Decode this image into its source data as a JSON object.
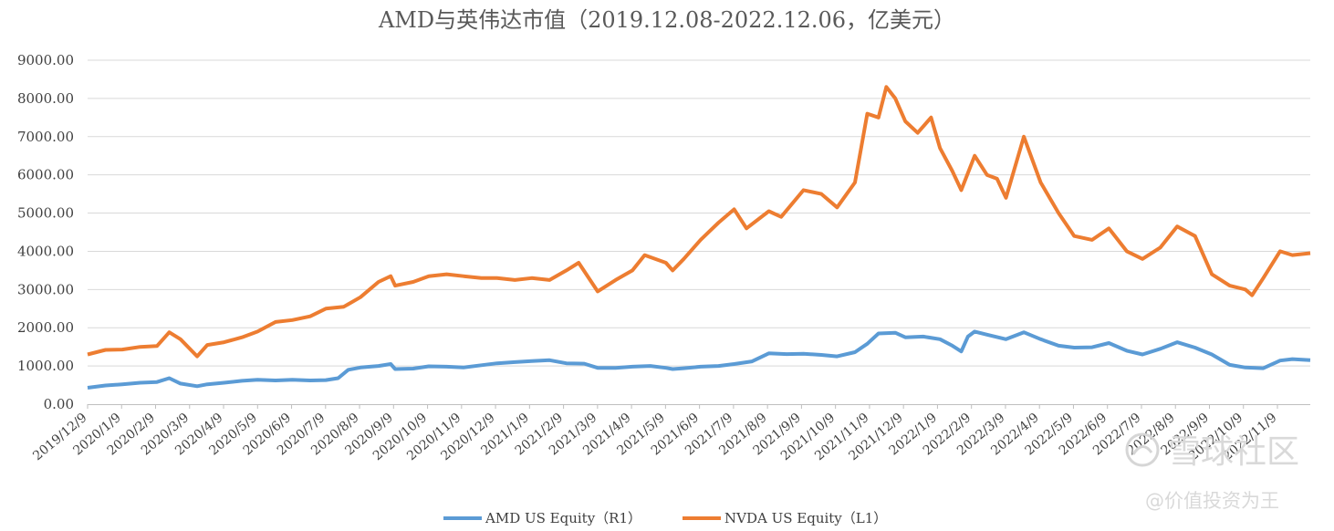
{
  "chart_data": {
    "type": "line",
    "title": "AMD与英伟达市值（2019.12.08-2022.12.06，亿美元）",
    "xlabel": "",
    "ylabel": "",
    "ylim": [
      0,
      9000
    ],
    "grid": true,
    "legend": "bottom",
    "y_ticks": [
      "0.00",
      "1000.00",
      "2000.00",
      "3000.00",
      "4000.00",
      "5000.00",
      "6000.00",
      "7000.00",
      "8000.00",
      "9000.00"
    ],
    "x_ticks": [
      "2019/12/9",
      "2020/1/9",
      "2020/2/9",
      "2020/3/9",
      "2020/4/9",
      "2020/5/9",
      "2020/6/9",
      "2020/7/9",
      "2020/8/9",
      "2020/9/9",
      "2020/10/9",
      "2020/11/9",
      "2020/12/9",
      "2021/1/9",
      "2021/2/9",
      "2021/3/9",
      "2021/4/9",
      "2021/5/9",
      "2021/6/9",
      "2021/7/9",
      "2021/8/9",
      "2021/9/9",
      "2021/10/9",
      "2021/11/9",
      "2021/12/9",
      "2022/1/9",
      "2022/2/9",
      "2022/3/9",
      "2022/4/9",
      "2022/5/9",
      "2022/6/9",
      "2022/7/9",
      "2022/8/9",
      "2022/9/9",
      "2022/10/9",
      "2022/11/9"
    ],
    "series": [
      {
        "name": "AMD US Equity（R1）",
        "color": "#5b9bd5",
        "points": [
          [
            "2019/12/9",
            430
          ],
          [
            "2019/12/25",
            490
          ],
          [
            "2020/1/9",
            520
          ],
          [
            "2020/1/25",
            560
          ],
          [
            "2020/2/9",
            580
          ],
          [
            "2020/2/20",
            680
          ],
          [
            "2020/3/1",
            540
          ],
          [
            "2020/3/16",
            470
          ],
          [
            "2020/3/25",
            520
          ],
          [
            "2020/4/9",
            560
          ],
          [
            "2020/4/25",
            610
          ],
          [
            "2020/5/9",
            640
          ],
          [
            "2020/5/25",
            620
          ],
          [
            "2020/6/9",
            640
          ],
          [
            "2020/6/25",
            620
          ],
          [
            "2020/7/9",
            630
          ],
          [
            "2020/7/20",
            680
          ],
          [
            "2020/7/29",
            900
          ],
          [
            "2020/8/9",
            960
          ],
          [
            "2020/8/25",
            1000
          ],
          [
            "2020/9/5",
            1050
          ],
          [
            "2020/9/9",
            920
          ],
          [
            "2020/9/25",
            930
          ],
          [
            "2020/10/9",
            990
          ],
          [
            "2020/10/25",
            980
          ],
          [
            "2020/11/9",
            960
          ],
          [
            "2020/11/25",
            1020
          ],
          [
            "2020/12/9",
            1070
          ],
          [
            "2020/12/25",
            1100
          ],
          [
            "2021/1/9",
            1130
          ],
          [
            "2021/1/25",
            1150
          ],
          [
            "2021/2/9",
            1070
          ],
          [
            "2021/2/25",
            1060
          ],
          [
            "2021/3/9",
            950
          ],
          [
            "2021/3/25",
            950
          ],
          [
            "2021/4/9",
            980
          ],
          [
            "2021/4/25",
            1000
          ],
          [
            "2021/5/9",
            950
          ],
          [
            "2021/5/15",
            920
          ],
          [
            "2021/5/25",
            940
          ],
          [
            "2021/6/9",
            980
          ],
          [
            "2021/6/25",
            1000
          ],
          [
            "2021/7/9",
            1050
          ],
          [
            "2021/7/25",
            1120
          ],
          [
            "2021/8/9",
            1330
          ],
          [
            "2021/8/25",
            1310
          ],
          [
            "2021/9/9",
            1320
          ],
          [
            "2021/9/25",
            1290
          ],
          [
            "2021/10/9",
            1250
          ],
          [
            "2021/10/25",
            1360
          ],
          [
            "2021/11/5",
            1580
          ],
          [
            "2021/11/15",
            1850
          ],
          [
            "2021/11/30",
            1870
          ],
          [
            "2021/12/9",
            1750
          ],
          [
            "2021/12/25",
            1770
          ],
          [
            "2022/1/9",
            1700
          ],
          [
            "2022/1/20",
            1530
          ],
          [
            "2022/1/28",
            1380
          ],
          [
            "2022/2/3",
            1770
          ],
          [
            "2022/2/9",
            1900
          ],
          [
            "2022/2/20",
            1820
          ],
          [
            "2022/3/9",
            1700
          ],
          [
            "2022/3/25",
            1880
          ],
          [
            "2022/4/9",
            1700
          ],
          [
            "2022/4/25",
            1530
          ],
          [
            "2022/5/9",
            1480
          ],
          [
            "2022/5/25",
            1490
          ],
          [
            "2022/6/9",
            1600
          ],
          [
            "2022/6/25",
            1400
          ],
          [
            "2022/7/9",
            1300
          ],
          [
            "2022/7/25",
            1450
          ],
          [
            "2022/8/9",
            1620
          ],
          [
            "2022/8/25",
            1480
          ],
          [
            "2022/9/9",
            1300
          ],
          [
            "2022/9/25",
            1030
          ],
          [
            "2022/10/9",
            960
          ],
          [
            "2022/10/25",
            940
          ],
          [
            "2022/11/9",
            1140
          ],
          [
            "2022/11/20",
            1180
          ],
          [
            "2022/12/6",
            1150
          ]
        ]
      },
      {
        "name": "NVDA US Equity（L1）",
        "color": "#ed7d31",
        "points": [
          [
            "2019/12/9",
            1300
          ],
          [
            "2019/12/25",
            1420
          ],
          [
            "2020/1/9",
            1430
          ],
          [
            "2020/1/25",
            1500
          ],
          [
            "2020/2/9",
            1520
          ],
          [
            "2020/2/20",
            1880
          ],
          [
            "2020/3/1",
            1700
          ],
          [
            "2020/3/16",
            1250
          ],
          [
            "2020/3/25",
            1550
          ],
          [
            "2020/4/9",
            1620
          ],
          [
            "2020/4/25",
            1750
          ],
          [
            "2020/5/9",
            1900
          ],
          [
            "2020/5/25",
            2150
          ],
          [
            "2020/6/9",
            2200
          ],
          [
            "2020/6/25",
            2300
          ],
          [
            "2020/7/9",
            2500
          ],
          [
            "2020/7/25",
            2550
          ],
          [
            "2020/8/9",
            2800
          ],
          [
            "2020/8/25",
            3200
          ],
          [
            "2020/9/5",
            3350
          ],
          [
            "2020/9/9",
            3100
          ],
          [
            "2020/9/25",
            3200
          ],
          [
            "2020/10/9",
            3350
          ],
          [
            "2020/10/25",
            3400
          ],
          [
            "2020/11/9",
            3350
          ],
          [
            "2020/11/25",
            3300
          ],
          [
            "2020/12/9",
            3300
          ],
          [
            "2020/12/25",
            3250
          ],
          [
            "2021/1/9",
            3300
          ],
          [
            "2021/1/25",
            3250
          ],
          [
            "2021/2/9",
            3500
          ],
          [
            "2021/2/20",
            3700
          ],
          [
            "2021/3/9",
            2950
          ],
          [
            "2021/3/25",
            3250
          ],
          [
            "2021/4/9",
            3500
          ],
          [
            "2021/4/20",
            3900
          ],
          [
            "2021/5/9",
            3700
          ],
          [
            "2021/5/15",
            3500
          ],
          [
            "2021/5/25",
            3800
          ],
          [
            "2021/6/9",
            4300
          ],
          [
            "2021/6/25",
            4750
          ],
          [
            "2021/7/9",
            5100
          ],
          [
            "2021/7/20",
            4600
          ],
          [
            "2021/8/9",
            5050
          ],
          [
            "2021/8/20",
            4900
          ],
          [
            "2021/9/9",
            5600
          ],
          [
            "2021/9/25",
            5500
          ],
          [
            "2021/10/9",
            5150
          ],
          [
            "2021/10/25",
            5800
          ],
          [
            "2021/11/5",
            7600
          ],
          [
            "2021/11/15",
            7500
          ],
          [
            "2021/11/22",
            8300
          ],
          [
            "2021/11/30",
            8000
          ],
          [
            "2021/12/9",
            7400
          ],
          [
            "2021/12/20",
            7100
          ],
          [
            "2022/1/1",
            7500
          ],
          [
            "2022/1/9",
            6700
          ],
          [
            "2022/1/20",
            6100
          ],
          [
            "2022/1/28",
            5600
          ],
          [
            "2022/2/9",
            6500
          ],
          [
            "2022/2/20",
            6000
          ],
          [
            "2022/3/1",
            5900
          ],
          [
            "2022/3/9",
            5400
          ],
          [
            "2022/3/25",
            7000
          ],
          [
            "2022/4/9",
            5800
          ],
          [
            "2022/4/25",
            5000
          ],
          [
            "2022/5/9",
            4400
          ],
          [
            "2022/5/25",
            4300
          ],
          [
            "2022/6/9",
            4600
          ],
          [
            "2022/6/25",
            4000
          ],
          [
            "2022/7/9",
            3800
          ],
          [
            "2022/7/25",
            4100
          ],
          [
            "2022/8/9",
            4650
          ],
          [
            "2022/8/25",
            4400
          ],
          [
            "2022/9/9",
            3400
          ],
          [
            "2022/9/25",
            3100
          ],
          [
            "2022/10/9",
            3000
          ],
          [
            "2022/10/15",
            2850
          ],
          [
            "2022/10/25",
            3300
          ],
          [
            "2022/11/9",
            4000
          ],
          [
            "2022/11/20",
            3900
          ],
          [
            "2022/12/6",
            3950
          ]
        ]
      }
    ]
  },
  "watermark": {
    "logo": "雪球社区",
    "handle": "@价值投资为王"
  }
}
